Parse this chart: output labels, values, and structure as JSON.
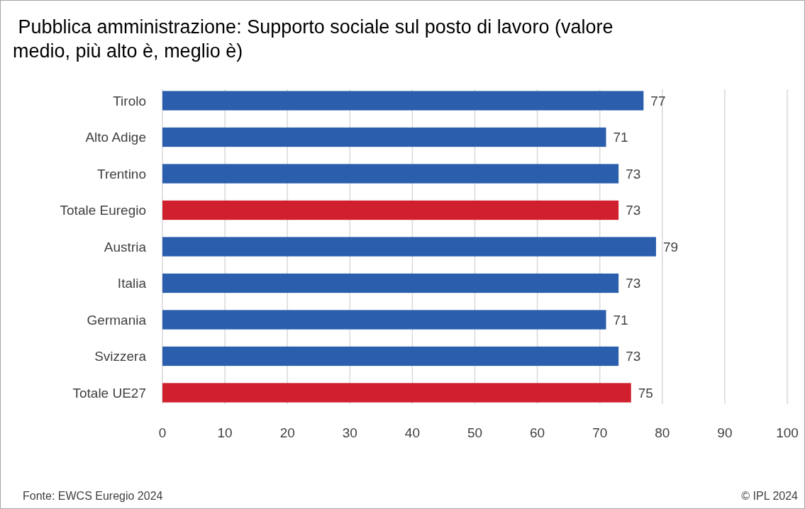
{
  "chart_data": {
    "type": "bar",
    "orientation": "horizontal",
    "title": " Pubblica amministrazione: Supporto sociale sul posto di lavoro (valore medio, più alto è, meglio è)",
    "categories": [
      "Tirolo",
      "Alto Adige",
      "Trentino",
      "Totale Euregio",
      "Austria",
      "Italia",
      "Germania",
      "Svizzera",
      "Totale UE27"
    ],
    "values": [
      77,
      71,
      73,
      73,
      79,
      73,
      71,
      73,
      75
    ],
    "colors": [
      "#2b5fad",
      "#2b5fad",
      "#2b5fad",
      "#d0202e",
      "#2b5fad",
      "#2b5fad",
      "#2b5fad",
      "#2b5fad",
      "#d0202e"
    ],
    "xlim": [
      0,
      100
    ],
    "xticks": [
      0,
      10,
      20,
      30,
      40,
      50,
      60,
      70,
      80,
      90,
      100
    ],
    "grid": "x",
    "data_labels": true,
    "annotations": [
      "Fonte: EWCS Euregio 2024",
      "© IPL 2024"
    ]
  }
}
